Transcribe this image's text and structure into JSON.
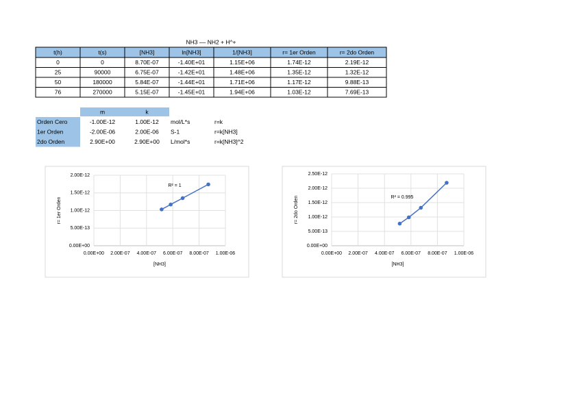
{
  "title": "NH3 –– NH2 + H^+",
  "table": {
    "header": [
      "t(h)",
      "t(s)",
      "[NH3]",
      "ln[NH3]",
      "1/[NH3]",
      "r= 1er Orden",
      "r= 2do Orden"
    ],
    "rows": [
      [
        "0",
        "0",
        "8.70E-07",
        "-1.40E+01",
        "1.15E+06",
        "1.74E-12",
        "2.19E-12"
      ],
      [
        "25",
        "90000",
        "6.75E-07",
        "-1.42E+01",
        "1.48E+06",
        "1.35E-12",
        "1.32E-12"
      ],
      [
        "50",
        "180000",
        "5.84E-07",
        "-1.44E+01",
        "1.71E+06",
        "1.17E-12",
        "9.88E-13"
      ],
      [
        "76",
        "270000",
        "5.15E-07",
        "-1.45E+01",
        "1.94E+06",
        "1.03E-12",
        "7.69E-13"
      ]
    ]
  },
  "constants": {
    "header": [
      "m",
      "k"
    ],
    "rows": [
      [
        "Orden Cero",
        "-1.00E-12",
        "1.00E-12",
        "mol/L*s",
        "r=k"
      ],
      [
        "1er Orden",
        "-2.00E-06",
        "2.00E-06",
        "S-1",
        "r=k[NH3]"
      ],
      [
        "2do Orden",
        "2.90E+00",
        "2.90E+00",
        "L/mol*s",
        "r=k[NH3]^2"
      ]
    ]
  },
  "chart_data": [
    {
      "type": "scatter",
      "x": [
        8.7e-07,
        6.75e-07,
        5.84e-07,
        5.15e-07
      ],
      "values": [
        1.74e-12,
        1.35e-12,
        1.17e-12,
        1.03e-12
      ],
      "color": "#4472c4",
      "xlabel": "[NH3]",
      "ylabel": "r= 1er Orden",
      "annotation": "R² = 1",
      "xlim": [
        0,
        1e-06
      ],
      "xticks": [
        {
          "value": 0,
          "label": "0.00E+00"
        },
        {
          "value": 2e-07,
          "label": "2.00E-07"
        },
        {
          "value": 4e-07,
          "label": "4.00E-07"
        },
        {
          "value": 6e-07,
          "label": "6.00E-07"
        },
        {
          "value": 8e-07,
          "label": "8.00E-07"
        },
        {
          "value": 1e-06,
          "label": "1.00E-06"
        }
      ],
      "ylim": [
        0,
        2e-12
      ],
      "yticks": [
        {
          "value": 0,
          "label": "0.00E+00"
        },
        {
          "value": 5e-13,
          "label": "5.00E-13"
        },
        {
          "value": 1e-12,
          "label": "1.00E-12"
        },
        {
          "value": 1.5e-12,
          "label": "1.50E-12"
        },
        {
          "value": 2e-12,
          "label": "2.00E-12"
        }
      ],
      "grid": true
    },
    {
      "type": "scatter",
      "x": [
        8.7e-07,
        6.75e-07,
        5.84e-07,
        5.15e-07
      ],
      "values": [
        2.19e-12,
        1.32e-12,
        9.88e-13,
        7.69e-13
      ],
      "color": "#4472c4",
      "xlabel": "[NH3]",
      "ylabel": "r= 2do Orden",
      "annotation": "R² = 0.995",
      "xlim": [
        0,
        1e-06
      ],
      "xticks": [
        {
          "value": 0,
          "label": "0.00E+00"
        },
        {
          "value": 2e-07,
          "label": "2.00E-07"
        },
        {
          "value": 4e-07,
          "label": "4.00E-07"
        },
        {
          "value": 6e-07,
          "label": "6.00E-07"
        },
        {
          "value": 8e-07,
          "label": "8.00E-07"
        },
        {
          "value": 1e-06,
          "label": "1.00E-06"
        }
      ],
      "ylim": [
        0,
        2.5e-12
      ],
      "yticks": [
        {
          "value": 0,
          "label": "0.00E+00"
        },
        {
          "value": 5e-13,
          "label": "5.00E-13"
        },
        {
          "value": 1e-12,
          "label": "1.00E-12"
        },
        {
          "value": 1.5e-12,
          "label": "1.50E-12"
        },
        {
          "value": 2e-12,
          "label": "2.00E-12"
        },
        {
          "value": 2.5e-12,
          "label": "2.50E-12"
        }
      ],
      "grid": true
    }
  ]
}
